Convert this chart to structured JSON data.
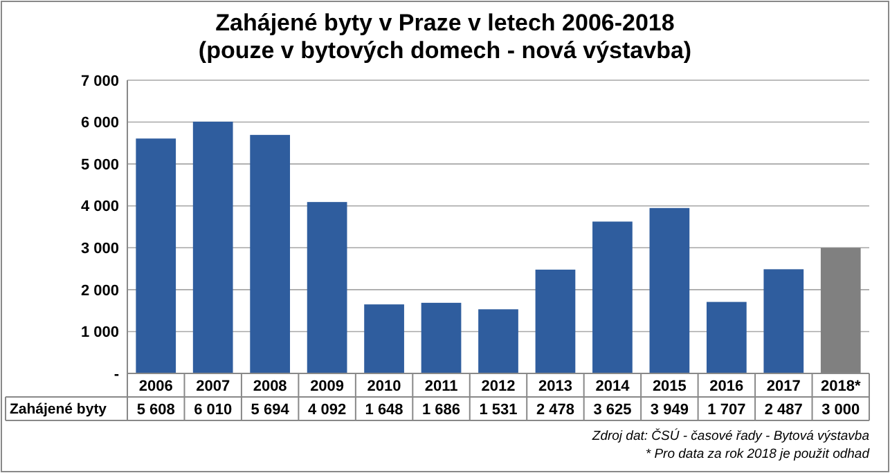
{
  "chart_data": {
    "type": "bar",
    "title": "Zahájené byty v Praze v letech 2006-2018\n(pouze v bytových domech - nová výstavba)",
    "categories": [
      "2006",
      "2007",
      "2008",
      "2009",
      "2010",
      "2011",
      "2012",
      "2013",
      "2014",
      "2015",
      "2016",
      "2017",
      "2018*"
    ],
    "series": [
      {
        "name": "Zahájené byty",
        "values": [
          5608,
          6010,
          5694,
          4092,
          1648,
          1686,
          1531,
          2478,
          3625,
          3949,
          1707,
          2487,
          3000
        ],
        "colors": [
          "#2f5d9e",
          "#2f5d9e",
          "#2f5d9e",
          "#2f5d9e",
          "#2f5d9e",
          "#2f5d9e",
          "#2f5d9e",
          "#2f5d9e",
          "#2f5d9e",
          "#2f5d9e",
          "#2f5d9e",
          "#2f5d9e",
          "#808080"
        ],
        "value_labels": [
          "5 608",
          "6 010",
          "5 694",
          "4 092",
          "1 648",
          "1 686",
          "1 531",
          "2 478",
          "3 625",
          "3 949",
          "1 707",
          "2 487",
          "3 000"
        ]
      }
    ],
    "ylim": [
      0,
      7000
    ],
    "yticks": [
      {
        "value": 0,
        "label": "-"
      },
      {
        "value": 1000,
        "label": "1 000"
      },
      {
        "value": 2000,
        "label": "2 000"
      },
      {
        "value": 3000,
        "label": "3 000"
      },
      {
        "value": 4000,
        "label": "4 000"
      },
      {
        "value": 5000,
        "label": "5 000"
      },
      {
        "value": 6000,
        "label": "6 000"
      },
      {
        "value": 7000,
        "label": "7 000"
      }
    ],
    "grid": "y",
    "annotations": [
      "Zdroj dat: ČSÚ - časové řady - Bytová výstavba",
      "* Pro data za rok 2018 je použit odhad"
    ]
  }
}
